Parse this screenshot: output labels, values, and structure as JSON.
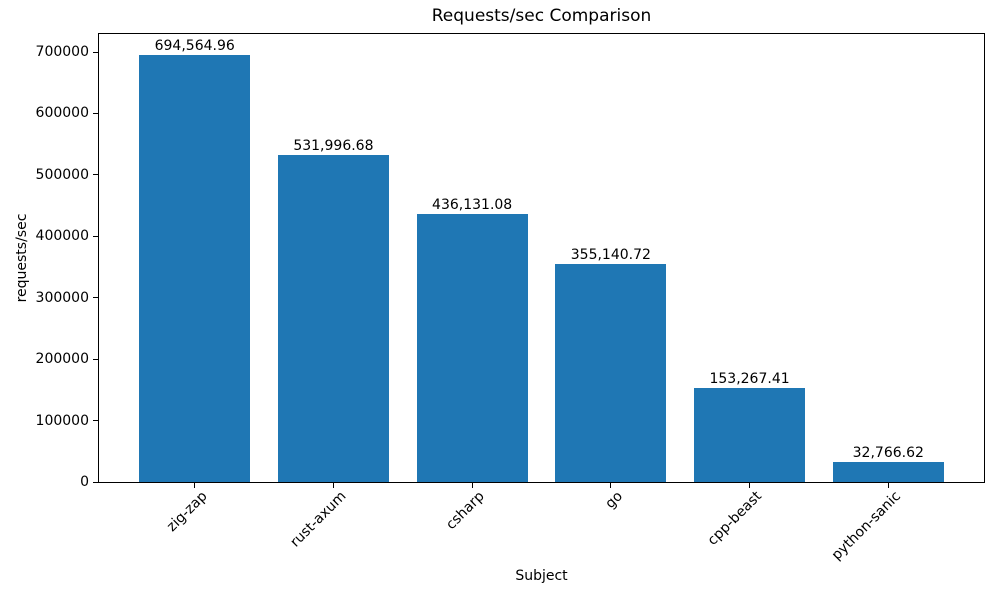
{
  "figure": {
    "background": "#ffffff"
  },
  "chart_data": {
    "type": "bar",
    "title": "Requests/sec Comparison",
    "xlabel": "Subject",
    "ylabel": "requests/sec",
    "categories": [
      "zig-zap",
      "rust-axum",
      "csharp",
      "go",
      "cpp-beast",
      "python-sanic"
    ],
    "values": [
      694564.96,
      531996.68,
      436131.08,
      355140.72,
      153267.41,
      32766.62
    ],
    "bar_labels": [
      "694,564.96",
      "531,996.68",
      "436,131.08",
      "355,140.72",
      "153,267.41",
      "32,766.62"
    ],
    "y_ticks": [
      0,
      100000,
      200000,
      300000,
      400000,
      500000,
      600000,
      700000
    ],
    "ylim": [
      0,
      729293
    ],
    "bar_color": "#1f77b4",
    "text_color": "#000000",
    "frame_color": "#000000",
    "grid": false,
    "legend": "none",
    "x_tick_rotation_deg": 45
  }
}
